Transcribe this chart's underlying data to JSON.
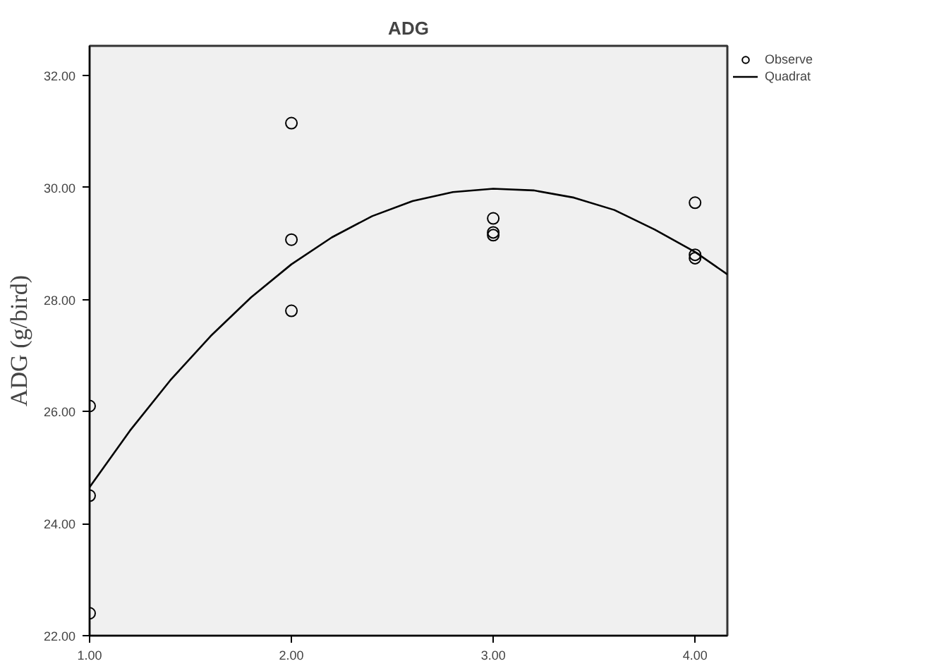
{
  "chart_data": {
    "type": "scatter",
    "title": "ADG",
    "ylabel": "ADG (g/bird)",
    "xlim": [
      1.0,
      4.16
    ],
    "ylim": [
      22.0,
      32.53
    ],
    "xticks": [
      {
        "value": 1,
        "label": "1.00"
      },
      {
        "value": 2,
        "label": "2.00"
      },
      {
        "value": 3,
        "label": "3.00"
      },
      {
        "value": 4,
        "label": "4.00"
      }
    ],
    "yticks": [
      {
        "value": 22,
        "label": "22.00"
      },
      {
        "value": 24,
        "label": "24.00"
      },
      {
        "value": 26,
        "label": "26.00"
      },
      {
        "value": 28,
        "label": "28.00"
      },
      {
        "value": 30,
        "label": "30.00"
      },
      {
        "value": 32,
        "label": "32.00"
      }
    ],
    "legend": "top right",
    "series": [
      {
        "name": "Observe",
        "marker": "circle",
        "color": "#000000",
        "x": [
          1,
          1,
          1,
          2,
          2,
          2,
          3,
          3,
          3,
          4,
          4,
          4
        ],
        "values": [
          26.1,
          24.5,
          22.4,
          31.15,
          29.07,
          27.8,
          29.45,
          29.2,
          29.15,
          29.73,
          28.74,
          28.8
        ]
      },
      {
        "name": "Quadrat",
        "type": "line",
        "color": "#000000",
        "line_style": "solid",
        "x": [
          1.0,
          1.2,
          1.4,
          1.6,
          1.8,
          2.0,
          2.2,
          2.4,
          2.6,
          2.8,
          3.0,
          3.2,
          3.4,
          3.6,
          3.8,
          4.0,
          4.16
        ],
        "values": [
          24.65,
          25.66,
          26.56,
          27.35,
          28.04,
          28.63,
          29.11,
          29.49,
          29.76,
          29.92,
          29.98,
          29.95,
          29.82,
          29.6,
          29.25,
          28.85,
          28.45
        ]
      }
    ]
  }
}
